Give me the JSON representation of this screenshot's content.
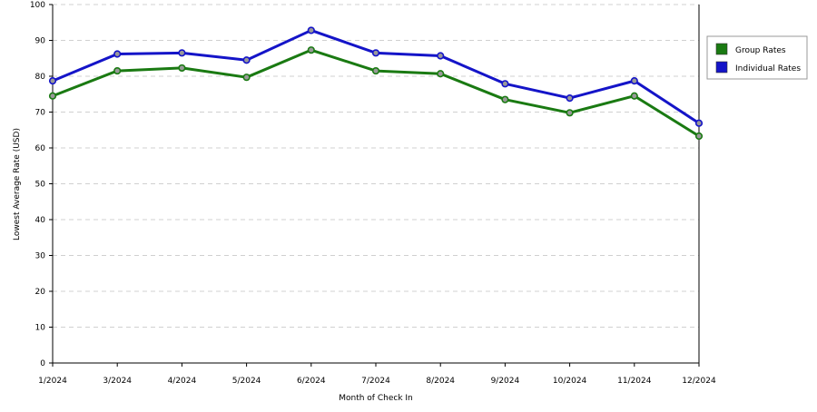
{
  "chart_data": {
    "type": "line",
    "title": "",
    "xlabel": "Month of Check In",
    "ylabel": "Lowest Average Rate (USD)",
    "categories": [
      "1/2024",
      "3/2024",
      "4/2024",
      "5/2024",
      "6/2024",
      "7/2024",
      "8/2024",
      "9/2024",
      "10/2024",
      "11/2024",
      "12/2024"
    ],
    "ylim": [
      0,
      100
    ],
    "yticks": [
      0,
      10,
      20,
      30,
      40,
      50,
      60,
      70,
      80,
      90,
      100
    ],
    "grid": "horizontal-dashed",
    "legend_position": "right",
    "series": [
      {
        "name": "Group Rates",
        "color": "#1a7a12",
        "values": [
          74.5,
          81.5,
          82.3,
          79.7,
          87.3,
          81.5,
          80.7,
          73.5,
          69.8,
          74.5,
          63.3
        ]
      },
      {
        "name": "Individual Rates",
        "color": "#1414c8",
        "values": [
          78.7,
          86.2,
          86.5,
          84.5,
          92.8,
          86.5,
          85.7,
          77.9,
          73.9,
          78.7,
          66.9
        ]
      }
    ]
  }
}
